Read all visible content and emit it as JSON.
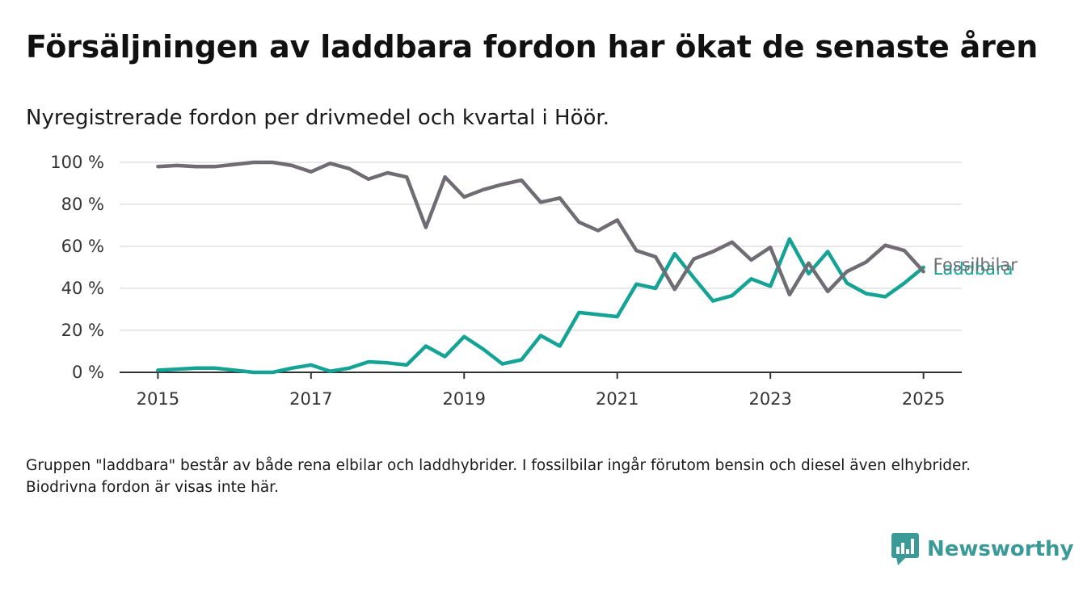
{
  "title": "Försäljningen av laddbara fordon har ökat de senaste åren",
  "subtitle": "Nyregistrerade fordon per drivmedel och kvartal i Höör.",
  "footnote": "Gruppen \"laddbara\" består av både rena elbilar och laddhybrider. I fossilbilar ingår förutom bensin och diesel även elhybrider. Biodrivna fordon är visas inte här.",
  "brand": "Newsworthy",
  "colors": {
    "fossil": "#6f6d73",
    "laddbara": "#14a394",
    "grid": "#e0e0e0",
    "axis": "#333333",
    "brand": "#3a9a97"
  },
  "chart_data": {
    "type": "line",
    "x_unit": "quarter",
    "x_start": "2015 Q1",
    "xlim": [
      2014.5,
      2025.5
    ],
    "ylim": [
      0,
      100
    ],
    "y_ticks": [
      0,
      20,
      40,
      60,
      80,
      100
    ],
    "y_tick_labels": [
      "0 %",
      "20 %",
      "40 %",
      "60 %",
      "80 %",
      "100 %"
    ],
    "x_ticks": [
      2015,
      2017,
      2019,
      2021,
      2023,
      2025
    ],
    "x_tick_labels": [
      "2015",
      "2017",
      "2019",
      "2021",
      "2023",
      "2025"
    ],
    "grid": "horizontal",
    "series": [
      {
        "name": "Fossilbilar",
        "color_key": "fossil",
        "values": [
          98,
          98.5,
          98,
          98,
          99,
          100,
          100,
          98.5,
          95.5,
          99.5,
          97,
          92,
          95,
          93,
          69,
          93,
          83.5,
          87,
          89.5,
          91.5,
          81,
          83,
          71.5,
          67.5,
          72.5,
          58,
          55,
          39.5,
          54,
          57.5,
          62,
          53.5,
          59.5,
          37,
          52,
          38.5,
          48,
          52.5,
          60.5,
          58,
          48
        ]
      },
      {
        "name": "Laddbara",
        "color_key": "laddbara",
        "values": [
          1,
          1.5,
          2,
          2,
          1,
          0,
          0,
          2,
          3.5,
          0.5,
          2,
          5,
          4.5,
          3.5,
          12.5,
          7.5,
          17,
          11,
          4,
          6,
          17.5,
          12.5,
          28.5,
          27.5,
          26.5,
          42,
          40,
          56.5,
          45,
          34,
          36.5,
          44.5,
          41,
          63.5,
          47,
          57.5,
          42.5,
          37.5,
          36,
          42.5,
          50
        ]
      }
    ]
  }
}
